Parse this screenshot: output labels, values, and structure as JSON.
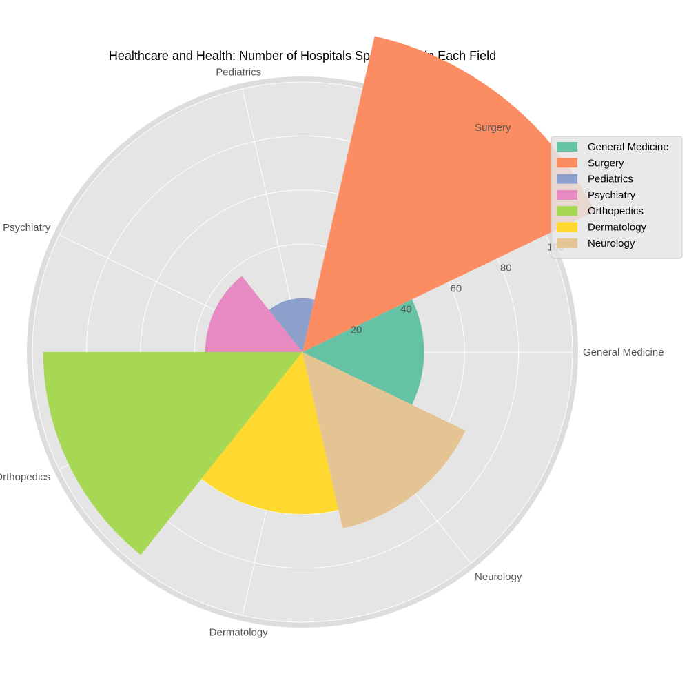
{
  "chart_data": {
    "type": "polar-bar",
    "title": "Healthcare and Health: Number of Hospitals Specializing in Each Field",
    "categories": [
      "General Medicine",
      "Surgery",
      "Pediatrics",
      "Psychiatry",
      "Orthopedics",
      "Dermatology",
      "Neurology"
    ],
    "values": [
      45,
      120,
      20,
      36,
      96,
      60,
      67
    ],
    "colors": [
      "#66c2a5",
      "#fc8d62",
      "#8da0cb",
      "#e78ac3",
      "#a6d854",
      "#ffd92f",
      "#e5c494"
    ],
    "radial_ticks": [
      20,
      40,
      60,
      80,
      100
    ],
    "radial_tick_labels": [
      "20",
      "40",
      "60",
      "80",
      "100"
    ],
    "rmax": 100,
    "grid": true,
    "legend_position": "right",
    "legend": [
      "General Medicine",
      "Surgery",
      "Pediatrics",
      "Psychiatry",
      "Orthopedics",
      "Dermatology",
      "Neurology"
    ]
  }
}
